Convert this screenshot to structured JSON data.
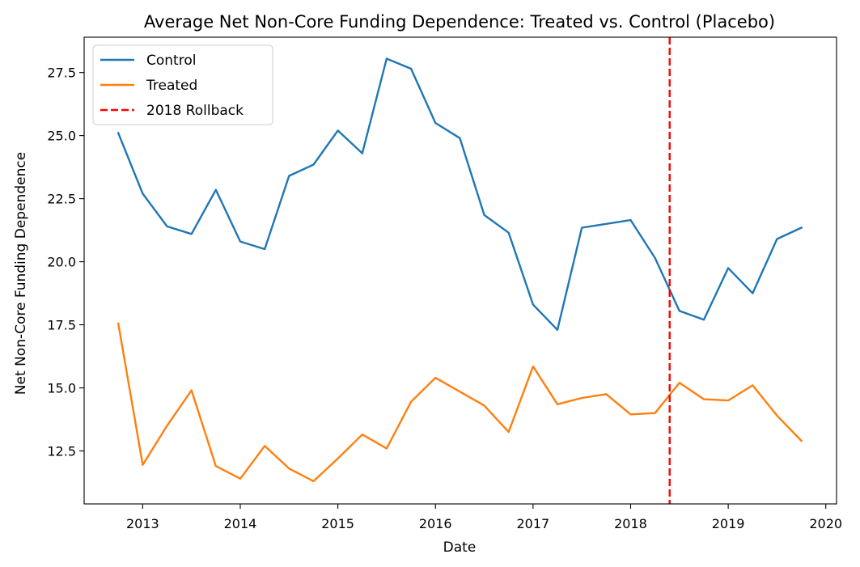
{
  "chart_data": {
    "type": "line",
    "title": "Average Net Non-Core Funding Dependence: Treated vs. Control (Placebo)",
    "xlabel": "Date",
    "ylabel": "Net Non-Core Funding Dependence",
    "xlim": [
      2012.4,
      2020.11
    ],
    "ylim": [
      10.4,
      28.9
    ],
    "x_ticks": [
      2013,
      2014,
      2015,
      2016,
      2017,
      2018,
      2019,
      2020
    ],
    "y_ticks": [
      12.5,
      15.0,
      17.5,
      20.0,
      22.5,
      25.0,
      27.5
    ],
    "grid": false,
    "legend_position": "upper-left",
    "x": [
      2012.75,
      2013.0,
      2013.25,
      2013.5,
      2013.75,
      2014.0,
      2014.25,
      2014.5,
      2014.75,
      2015.0,
      2015.25,
      2015.5,
      2015.75,
      2016.0,
      2016.25,
      2016.5,
      2016.75,
      2017.0,
      2017.25,
      2017.5,
      2017.75,
      2018.0,
      2018.25,
      2018.5,
      2018.75,
      2019.0,
      2019.25,
      2019.5,
      2019.75
    ],
    "series": [
      {
        "name": "Control",
        "color": "#1f77b4",
        "values": [
          25.1,
          22.7,
          21.4,
          21.1,
          22.85,
          20.8,
          20.5,
          23.4,
          23.85,
          25.2,
          24.3,
          28.05,
          27.65,
          25.5,
          24.9,
          21.85,
          21.15,
          18.3,
          17.3,
          21.35,
          21.5,
          21.65,
          20.15,
          18.05,
          17.7,
          19.75,
          18.75,
          20.9,
          21.35
        ]
      },
      {
        "name": "Treated",
        "color": "#ff7f0e",
        "values": [
          17.55,
          11.95,
          13.5,
          14.9,
          11.9,
          11.4,
          12.7,
          11.8,
          11.3,
          12.2,
          13.15,
          12.6,
          14.45,
          15.4,
          14.85,
          14.3,
          13.25,
          15.85,
          14.35,
          14.6,
          14.75,
          13.95,
          14.0,
          15.2,
          14.55,
          14.5,
          15.1,
          13.9,
          12.9
        ]
      }
    ],
    "annotations": [
      {
        "type": "vline",
        "name": "2018 Rollback",
        "x": 2018.4,
        "color": "#ff0000",
        "style": "dashed"
      }
    ]
  }
}
